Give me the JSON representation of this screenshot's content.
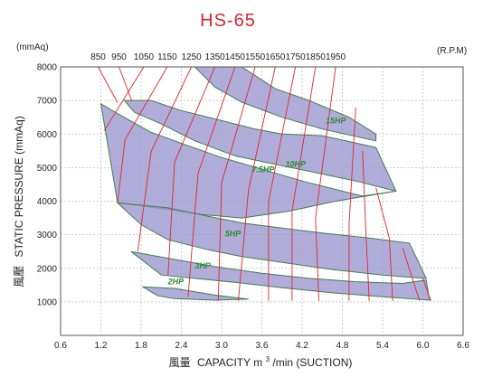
{
  "chart_data": {
    "type": "line",
    "title": "HS-65",
    "xlabel": "風量 CAPACITY m³/min (SUCTION)",
    "xlabel_parts": {
      "zh": "風量",
      "main": "CAPACITY  m",
      "sup": "3",
      "tail": "/min (SUCTION)"
    },
    "ylabel": "風壓 STATIC PRESSURE (mmAq)",
    "ylabel_parts": {
      "zh": "風壓",
      "main": "STATIC  PRESSURE  (mmAq)"
    },
    "y_unit": "(mmAq)",
    "rpm_unit": "(R.P.M)",
    "xlim": [
      0.6,
      6.6
    ],
    "ylim": [
      0,
      8000
    ],
    "x_ticks": [
      "0.6",
      "1.2",
      "1.8",
      "2.4",
      "3.0",
      "3.6",
      "4.2",
      "4.8",
      "5.4",
      "6.0",
      "6.6"
    ],
    "y_ticks": [
      "1000",
      "2000",
      "3000",
      "4000",
      "5000",
      "6000",
      "7000",
      "8000"
    ],
    "grid": true,
    "rpm_lines": [
      {
        "rpm": "850",
        "points": [
          [
            1.16,
            8000
          ],
          [
            1.45,
            6930
          ]
        ]
      },
      {
        "rpm": "950",
        "points": [
          [
            1.47,
            8000
          ],
          [
            1.66,
            7000
          ]
        ]
      },
      {
        "rpm": "1050",
        "points": [
          [
            1.84,
            8000
          ],
          [
            1.25,
            6100
          ]
        ]
      },
      {
        "rpm": "1150",
        "points": [
          [
            2.19,
            8000
          ],
          [
            1.56,
            5830
          ],
          [
            1.45,
            3950
          ]
        ]
      },
      {
        "rpm": "1250",
        "points": [
          [
            2.55,
            8000
          ],
          [
            1.95,
            5480
          ],
          [
            1.75,
            2500
          ]
        ]
      },
      {
        "rpm": "1350",
        "points": [
          [
            2.9,
            8000
          ],
          [
            2.3,
            5160
          ],
          [
            2.2,
            1780
          ]
        ]
      },
      {
        "rpm": "1450",
        "points": [
          [
            3.2,
            8000
          ],
          [
            2.65,
            4830
          ],
          [
            2.5,
            1150
          ]
        ]
      },
      {
        "rpm": "1550",
        "points": [
          [
            3.5,
            8000
          ],
          [
            3.0,
            4540
          ],
          [
            2.95,
            1030
          ]
        ]
      },
      {
        "rpm": "1650",
        "points": [
          [
            3.8,
            8000
          ],
          [
            3.4,
            4320
          ],
          [
            3.25,
            1030
          ]
        ]
      },
      {
        "rpm": "1750",
        "points": [
          [
            4.1,
            8000
          ],
          [
            3.7,
            3980
          ],
          [
            3.7,
            1030
          ]
        ]
      },
      {
        "rpm": "1850",
        "points": [
          [
            4.4,
            8000
          ],
          [
            4.05,
            3700
          ],
          [
            4.05,
            1030
          ]
        ]
      },
      {
        "rpm": "1950",
        "points": [
          [
            4.7,
            8000
          ],
          [
            4.4,
            3500
          ],
          [
            4.45,
            1030
          ]
        ]
      },
      {
        "rpm": "",
        "points": [
          [
            5.0,
            6800
          ],
          [
            4.9,
            3300
          ],
          [
            4.9,
            1030
          ]
        ]
      },
      {
        "rpm": "",
        "points": [
          [
            5.1,
            5500
          ],
          [
            5.15,
            3100
          ],
          [
            5.2,
            1030
          ]
        ]
      },
      {
        "rpm": "",
        "points": [
          [
            5.3,
            4400
          ],
          [
            5.5,
            2900
          ],
          [
            5.55,
            1030
          ]
        ]
      },
      {
        "rpm": "",
        "points": [
          [
            5.7,
            2600
          ],
          [
            5.95,
            1030
          ]
        ]
      },
      {
        "rpm": "",
        "points": [
          [
            6.0,
            1700
          ],
          [
            6.12,
            1030
          ]
        ]
      }
    ],
    "series": [
      {
        "name": "15HP",
        "polygon": [
          [
            2.6,
            8000
          ],
          [
            3.3,
            8000
          ],
          [
            3.8,
            7350
          ],
          [
            4.3,
            7000
          ],
          [
            4.9,
            6500
          ],
          [
            5.3,
            6000
          ],
          [
            5.3,
            5800
          ],
          [
            4.5,
            6150
          ],
          [
            3.9,
            6500
          ],
          [
            3.3,
            6950
          ],
          [
            2.9,
            7400
          ]
        ]
      },
      {
        "name": "10HP",
        "polygon": [
          [
            1.55,
            7000
          ],
          [
            1.95,
            7000
          ],
          [
            2.4,
            6700
          ],
          [
            3.0,
            6400
          ],
          [
            3.5,
            6150
          ],
          [
            3.9,
            6000
          ],
          [
            4.5,
            5950
          ],
          [
            5.3,
            5600
          ],
          [
            5.6,
            4300
          ],
          [
            5.0,
            4600
          ],
          [
            4.4,
            4850
          ],
          [
            3.8,
            5100
          ],
          [
            3.2,
            5350
          ],
          [
            2.6,
            5800
          ],
          [
            2.1,
            6300
          ],
          [
            1.7,
            6650
          ]
        ]
      },
      {
        "name": "7.5HP",
        "polygon": [
          [
            1.2,
            6900
          ],
          [
            1.5,
            6550
          ],
          [
            1.95,
            6050
          ],
          [
            2.5,
            5650
          ],
          [
            3.0,
            5300
          ],
          [
            3.6,
            4950
          ],
          [
            4.2,
            4600
          ],
          [
            4.7,
            4350
          ],
          [
            5.1,
            4150
          ],
          [
            5.6,
            4300
          ],
          [
            4.7,
            4000
          ],
          [
            4.0,
            3700
          ],
          [
            3.3,
            3500
          ],
          [
            2.7,
            3600
          ],
          [
            2.2,
            3750
          ],
          [
            1.85,
            3850
          ],
          [
            1.45,
            3950
          ]
        ]
      },
      {
        "name": "5HP",
        "polygon": [
          [
            1.45,
            3950
          ],
          [
            2.2,
            3800
          ],
          [
            2.8,
            3550
          ],
          [
            3.3,
            3350
          ],
          [
            3.9,
            3200
          ],
          [
            4.5,
            3050
          ],
          [
            5.2,
            2900
          ],
          [
            5.8,
            2750
          ],
          [
            6.05,
            1700
          ],
          [
            5.4,
            1800
          ],
          [
            4.7,
            1950
          ],
          [
            4.0,
            2150
          ],
          [
            3.3,
            2350
          ],
          [
            2.8,
            2550
          ],
          [
            2.2,
            2850
          ],
          [
            1.8,
            3300
          ]
        ]
      },
      {
        "name": "3HP",
        "polygon": [
          [
            1.65,
            2500
          ],
          [
            2.2,
            2300
          ],
          [
            2.9,
            2050
          ],
          [
            3.6,
            1850
          ],
          [
            4.3,
            1700
          ],
          [
            5.0,
            1600
          ],
          [
            5.7,
            1550
          ],
          [
            6.05,
            1650
          ],
          [
            6.1,
            1050
          ],
          [
            5.4,
            1150
          ],
          [
            4.6,
            1280
          ],
          [
            3.9,
            1420
          ],
          [
            3.2,
            1580
          ],
          [
            2.6,
            1700
          ],
          [
            2.1,
            1800
          ]
        ]
      },
      {
        "name": "2HP",
        "polygon": [
          [
            1.82,
            1450
          ],
          [
            2.3,
            1400
          ],
          [
            2.9,
            1200
          ],
          [
            3.4,
            1080
          ],
          [
            2.9,
            1050
          ],
          [
            2.3,
            1100
          ],
          [
            2.05,
            1180
          ]
        ]
      }
    ],
    "hp_labels": [
      {
        "text": "15HP",
        "x": 4.55,
        "y": 6320
      },
      {
        "text": "10HP",
        "x": 3.95,
        "y": 5030
      },
      {
        "text": "7.5HP",
        "x": 3.45,
        "y": 4860
      },
      {
        "text": "5HP",
        "x": 3.05,
        "y": 2950
      },
      {
        "text": "3HP",
        "x": 2.6,
        "y": 2000
      },
      {
        "text": "2HP",
        "x": 2.2,
        "y": 1520
      }
    ]
  }
}
